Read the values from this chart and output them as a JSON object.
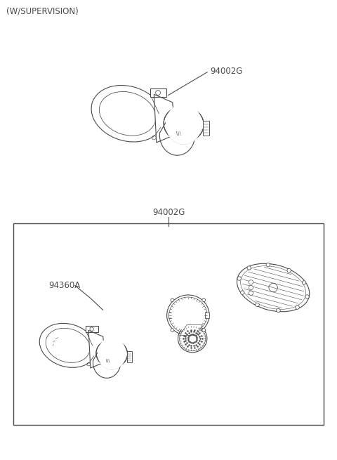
{
  "title": "(W/SUPERVISION)",
  "bg_color": "#ffffff",
  "line_color": "#4a4a4a",
  "label_94002G_top": "94002G",
  "label_94002G_bottom": "94002G",
  "label_94360A": "94360A",
  "fig_width": 4.8,
  "fig_height": 6.55
}
